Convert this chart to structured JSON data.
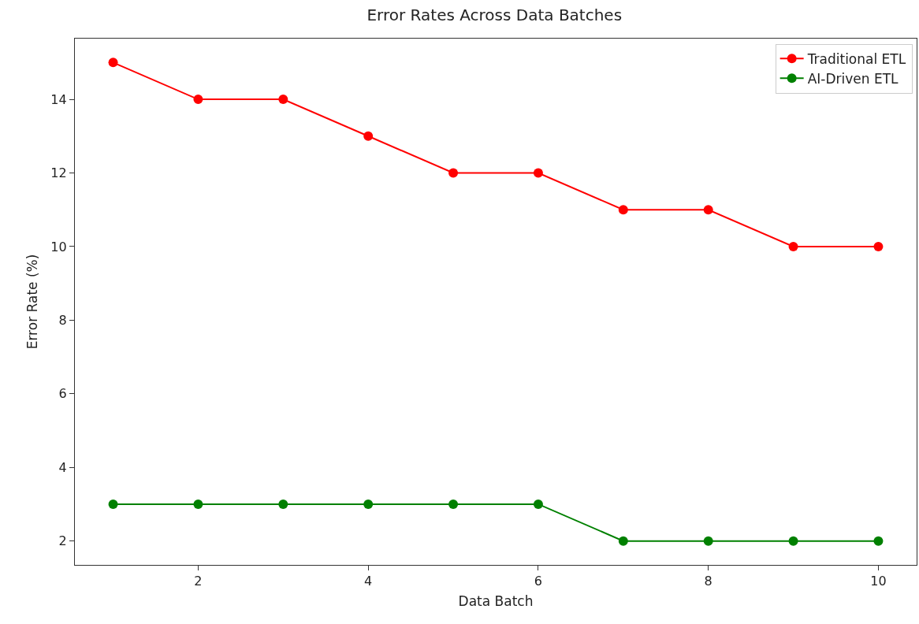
{
  "chart_data": {
    "type": "line",
    "title": "Error Rates Across Data Batches",
    "xlabel": "Data Batch",
    "ylabel": "Error Rate (%)",
    "x": [
      1,
      2,
      3,
      4,
      5,
      6,
      7,
      8,
      9,
      10
    ],
    "series": [
      {
        "name": "Traditional ETL",
        "color": "#ff0000",
        "values": [
          15,
          14,
          14,
          13,
          12,
          12,
          11,
          11,
          10,
          10
        ]
      },
      {
        "name": "AI-Driven ETL",
        "color": "#008000",
        "values": [
          3,
          3,
          3,
          3,
          3,
          3,
          2,
          2,
          2,
          2
        ]
      }
    ],
    "xlim": [
      0.55,
      10.45
    ],
    "xticks": [
      2,
      4,
      6,
      8,
      10
    ],
    "ylim": [
      1.35,
      15.65
    ],
    "yticks": [
      2,
      4,
      6,
      8,
      10,
      12,
      14
    ],
    "grid": false,
    "legend": "top right",
    "marker": "circle",
    "line_style": "solid"
  }
}
